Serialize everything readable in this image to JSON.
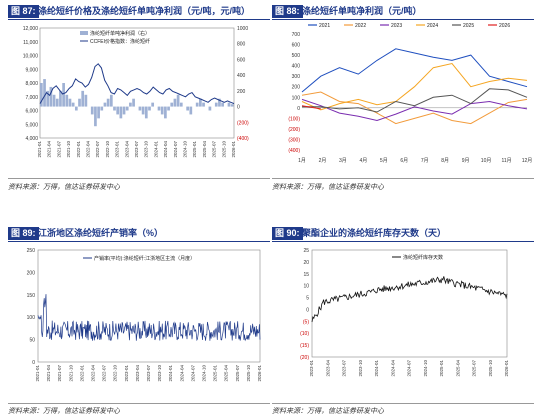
{
  "panels": [
    {
      "tag": "图 87:",
      "title": "涤纶短纤价格及涤纶短纤单吨净利润（元/吨，元/吨）",
      "source": "资料来源：万得，信达证券研发中心",
      "chart_data": {
        "type": "line",
        "legend": [
          "涤纶短纤单吨净利润（右）",
          "CCFEI价格指数：涤纶短纤"
        ],
        "y_left": {
          "ticks": [
            "12,000",
            "11,000",
            "10,000",
            "9,000",
            "8,000",
            "7,000",
            "6,000",
            "5,000",
            "4,000"
          ],
          "range": [
            4000,
            12000
          ]
        },
        "y_right": {
          "ticks": [
            "1000",
            "800",
            "600",
            "400",
            "200",
            "0",
            "(200)",
            "(400)"
          ],
          "range": [
            -400,
            1000
          ]
        },
        "x_ticks": [
          "2021-01",
          "2021-04",
          "2021-07",
          "2021-10",
          "2022-01",
          "2022-04",
          "2022-07",
          "2022-10",
          "2023-01",
          "2023-04",
          "2023-07",
          "2023-10",
          "2024-01",
          "2024-04",
          "2024-07",
          "2024-10",
          "2025-01",
          "2025-04",
          "2025-07",
          "2025-10",
          "2026-01"
        ],
        "price_series": [
          6500,
          6900,
          7300,
          7100,
          7600,
          7800,
          7500,
          7200,
          7300,
          7600,
          7800,
          8300,
          8100,
          8000,
          7700,
          7900,
          8400,
          9200,
          9400,
          9100,
          8200,
          7800,
          7300,
          7200,
          7600,
          7500,
          7300,
          7100,
          7400,
          7500,
          7600,
          7500,
          7300,
          7200,
          7400,
          7700,
          7500,
          7300,
          7200,
          7500,
          7600,
          7400,
          7300,
          7200,
          7100,
          7000,
          7200,
          7300,
          7000,
          6900,
          6800,
          6700,
          6600,
          6800,
          6900,
          6800,
          6700,
          6600,
          6700,
          6600,
          6500
        ],
        "profit_series": [
          300,
          350,
          200,
          250,
          150,
          100,
          200,
          300,
          150,
          100,
          50,
          -50,
          100,
          200,
          150,
          0,
          -100,
          -250,
          -150,
          -50,
          50,
          100,
          150,
          -50,
          -100,
          -150,
          -100,
          -50,
          50,
          100,
          0,
          -50,
          -100,
          -150,
          -50,
          50,
          0,
          -50,
          -100,
          -150,
          -50,
          50,
          100,
          150,
          50,
          0,
          -50,
          -100,
          0,
          50,
          100,
          50,
          0,
          -50,
          0,
          50,
          100,
          50,
          0,
          50,
          30
        ]
      }
    },
    {
      "tag": "图 88:",
      "title": "涤纶短纤单吨净利润（元/吨）",
      "source": "资料来源：万得，信达证券研发中心",
      "chart_data": {
        "type": "line",
        "legend": [
          "2021",
          "2022",
          "2023",
          "2024",
          "2025",
          "2026"
        ],
        "colors": [
          "#1f4fbf",
          "#f29b3b",
          "#7a2db0",
          "#f5a623",
          "#555555",
          "#e02020"
        ],
        "y_ticks": [
          "700",
          "600",
          "500",
          "400",
          "300",
          "200",
          "100",
          "0",
          "(100)",
          "(200)",
          "(300)",
          "(400)"
        ],
        "y_range": [
          -400,
          700
        ],
        "x_ticks": [
          "1月",
          "2月",
          "3月",
          "4月",
          "5月",
          "6月",
          "7月",
          "8月",
          "9月",
          "10月",
          "11月",
          "12月"
        ],
        "series": [
          {
            "name": "2021",
            "values": [
              150,
              300,
              380,
              320,
              450,
              560,
              520,
              480,
              450,
              500,
              300,
              250,
              200
            ]
          },
          {
            "name": "2022",
            "values": [
              120,
              150,
              60,
              40,
              -50,
              -150,
              -100,
              -50,
              -120,
              -150,
              -50,
              50,
              80
            ]
          },
          {
            "name": "2023",
            "values": [
              80,
              20,
              -50,
              -80,
              -120,
              -60,
              10,
              -30,
              -60,
              40,
              60,
              20,
              -10
            ]
          },
          {
            "name": "2024",
            "values": [
              60,
              -20,
              40,
              80,
              30,
              60,
              200,
              380,
              420,
              200,
              250,
              280,
              260
            ]
          },
          {
            "name": "2025",
            "values": [
              10,
              10,
              -10,
              0,
              -40,
              60,
              20,
              100,
              120,
              40,
              180,
              170,
              100
            ]
          },
          {
            "name": "2026",
            "values": [
              20,
              -10
            ]
          }
        ]
      }
    },
    {
      "tag": "图 89:",
      "title": "江浙地区涤纶短纤产销率（%）",
      "source": "资料来源：万得，信达证券研发中心",
      "chart_data": {
        "type": "line",
        "legend": [
          "产销率(平均):涤纶短纤:江浙地区主流（月度）"
        ],
        "y_ticks": [
          "250",
          "200",
          "150",
          "100",
          "50",
          "0"
        ],
        "y_range": [
          0,
          250
        ],
        "x_ticks": [
          "2021-01",
          "2021-04",
          "2021-07",
          "2021-10",
          "2022-01",
          "2022-04",
          "2022-07",
          "2022-10",
          "2023-01",
          "2023-04",
          "2023-07",
          "2023-10",
          "2024-01",
          "2024-04",
          "2024-07",
          "2024-10",
          "2025-01",
          "2025-04",
          "2025-07",
          "2025-10",
          "2026-01"
        ]
      }
    },
    {
      "tag": "图 90:",
      "title": "聚酯企业的涤纶短纤库存天数（天）",
      "source": "资料来源：万得，信达证券研发中心",
      "chart_data": {
        "type": "line",
        "legend": [
          "涤纶短纤库存天数"
        ],
        "y_ticks": [
          "25",
          "20",
          "15",
          "10",
          "5",
          "0",
          "(5)",
          "(10)",
          "(15)",
          "(20)"
        ],
        "y_range": [
          -20,
          25
        ],
        "x_ticks": [
          "2023-01",
          "2023-04",
          "2023-07",
          "2023-10",
          "2024-01",
          "2024-04",
          "2024-07",
          "2024-10",
          "2025-01",
          "2025-04",
          "2025-07",
          "2025-10",
          "2026-01"
        ]
      }
    }
  ]
}
